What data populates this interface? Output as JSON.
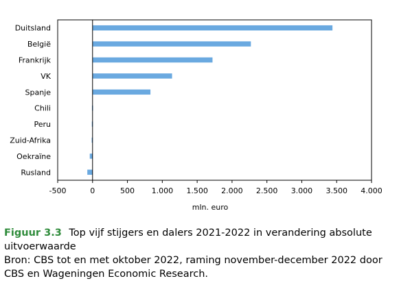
{
  "chart_data": {
    "type": "bar",
    "orientation": "horizontal",
    "categories": [
      "Duitsland",
      "België",
      "Frankrijk",
      "VK",
      "Spanje",
      "Chili",
      "Peru",
      "Zuid-Afrika",
      "Oekraïne",
      "Rusland"
    ],
    "values": [
      3440,
      2270,
      1720,
      1140,
      830,
      -8,
      -10,
      -12,
      -40,
      -75
    ],
    "xlabel": "mln. euro",
    "xlim": [
      -500,
      4000
    ],
    "xticks": [
      -500,
      0,
      500,
      1000,
      1500,
      2000,
      2500,
      3000,
      3500,
      4000
    ],
    "xtick_labels": [
      "-500",
      "0",
      "500",
      "1.000",
      "1.500",
      "2.000",
      "2.500",
      "3.000",
      "3.500",
      "4.000"
    ],
    "bar_color": "#6aa9e0",
    "grid": false
  },
  "caption": {
    "figure_label": "Figuur 3.3",
    "title": "Top vijf stijgers en dalers 2021-2022 in verandering absolute uitvoerwaarde",
    "source": "Bron: CBS tot en met oktober 2022, raming november-december 2022 door CBS en Wageningen Economic Research.",
    "label_color": "#2e8b3a"
  }
}
